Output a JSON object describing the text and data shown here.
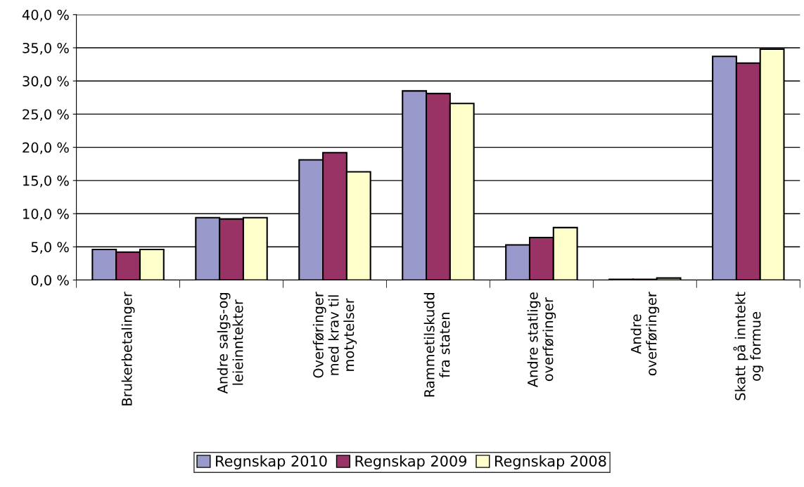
{
  "chart_data": {
    "type": "bar",
    "categories": [
      "Brukerbetalinger",
      "Andre salgs-og\nleieinntekter",
      "Overføringer\nmed krav til\nmotytelser",
      "Rammetilskudd\nfra staten",
      "Andre statlige\noverføringer",
      "Andre\noverføringer",
      "Skatt på inntekt\nog formue"
    ],
    "series": [
      {
        "name": "Regnskap 2010",
        "color": "#9999cc",
        "values": [
          4.6,
          9.4,
          18.1,
          28.5,
          5.3,
          0.1,
          33.7
        ]
      },
      {
        "name": "Regnskap 2009",
        "color": "#993366",
        "values": [
          4.2,
          9.2,
          19.2,
          28.1,
          6.4,
          0.1,
          32.7
        ]
      },
      {
        "name": "Regnskap 2008",
        "color": "#ffffcc",
        "values": [
          4.6,
          9.4,
          16.3,
          26.6,
          7.9,
          0.3,
          34.8
        ]
      }
    ],
    "ylim": [
      0,
      40
    ],
    "yticks": [
      {
        "value": 0,
        "label": "0,0 %"
      },
      {
        "value": 5,
        "label": "5,0 %"
      },
      {
        "value": 10,
        "label": "10,0 %"
      },
      {
        "value": 15,
        "label": "15,0 %"
      },
      {
        "value": 20,
        "label": "20,0 %"
      },
      {
        "value": 25,
        "label": "25,0 %"
      },
      {
        "value": 30,
        "label": "30,0 %"
      },
      {
        "value": 35,
        "label": "35,0 %"
      },
      {
        "value": 40,
        "label": "40,0 %"
      }
    ],
    "grid": "y",
    "legend": "bottom"
  }
}
